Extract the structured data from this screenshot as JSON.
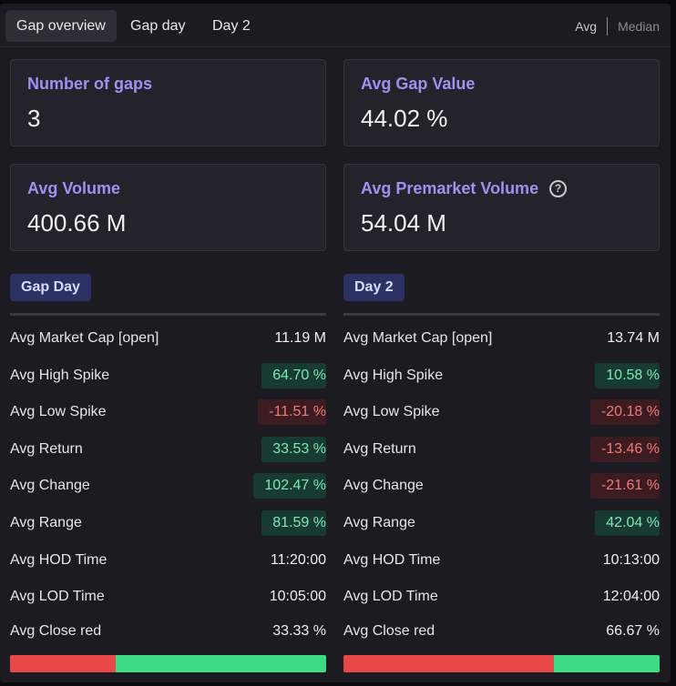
{
  "tabs": [
    {
      "label": "Gap overview",
      "active": true
    },
    {
      "label": "Gap day",
      "active": false
    },
    {
      "label": "Day 2",
      "active": false
    }
  ],
  "toggle": {
    "avg": "Avg",
    "median": "Median"
  },
  "cards": {
    "num_gaps": {
      "label": "Number of gaps",
      "value": "3"
    },
    "avg_gap_value": {
      "label": "Avg Gap Value",
      "value": "44.02 %"
    },
    "avg_volume": {
      "label": "Avg Volume",
      "value": "400.66 M"
    },
    "avg_premarket_volume": {
      "label": "Avg Premarket Volume",
      "value": "54.04 M",
      "help_icon": "?"
    }
  },
  "gap_day": {
    "title": "Gap Day",
    "rows": [
      {
        "label": "Avg Market Cap [open]",
        "value": "11.19 M",
        "tone": "plain"
      },
      {
        "label": "Avg High Spike",
        "value": "64.70 %",
        "tone": "pos"
      },
      {
        "label": "Avg Low Spike",
        "value": "-11.51 %",
        "tone": "neg"
      },
      {
        "label": "Avg Return",
        "value": "33.53 %",
        "tone": "pos"
      },
      {
        "label": "Avg Change",
        "value": "102.47 %",
        "tone": "pos"
      },
      {
        "label": "Avg Range",
        "value": "81.59 %",
        "tone": "pos"
      },
      {
        "label": "Avg HOD Time",
        "value": "11:20:00",
        "tone": "plain"
      },
      {
        "label": "Avg LOD Time",
        "value": "10:05:00",
        "tone": "plain"
      },
      {
        "label": "Avg Close red",
        "value": "33.33 %",
        "tone": "plain"
      }
    ],
    "close_red_fraction": 0.3333
  },
  "day2": {
    "title": "Day 2",
    "rows": [
      {
        "label": "Avg Market Cap [open]",
        "value": "13.74 M",
        "tone": "plain"
      },
      {
        "label": "Avg High Spike",
        "value": "10.58 %",
        "tone": "pos"
      },
      {
        "label": "Avg Low Spike",
        "value": "-20.18 %",
        "tone": "neg"
      },
      {
        "label": "Avg Return",
        "value": "-13.46 %",
        "tone": "neg"
      },
      {
        "label": "Avg Change",
        "value": "-21.61 %",
        "tone": "neg"
      },
      {
        "label": "Avg Range",
        "value": "42.04 %",
        "tone": "pos"
      },
      {
        "label": "Avg HOD Time",
        "value": "10:13:00",
        "tone": "plain"
      },
      {
        "label": "Avg LOD Time",
        "value": "12:04:00",
        "tone": "plain"
      },
      {
        "label": "Avg Close red",
        "value": "66.67 %",
        "tone": "plain"
      }
    ],
    "close_red_fraction": 0.6667
  },
  "colors": {
    "accent": "#9a94f0",
    "positive": "#3ddc84",
    "negative": "#e84747"
  }
}
